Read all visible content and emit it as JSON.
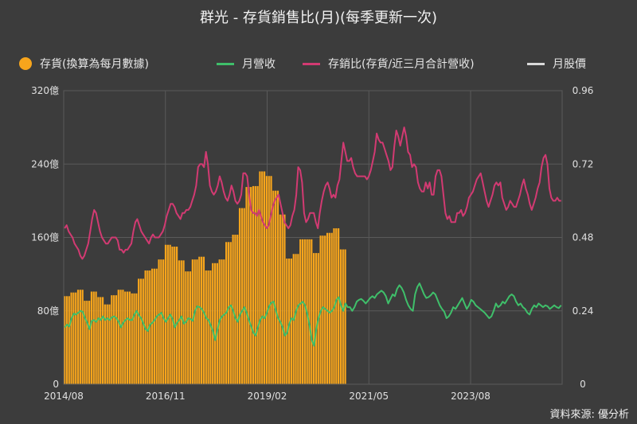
{
  "chart_data": {
    "type": "bar",
    "title": "群光 - 存貨銷售比(月)(每季更新一次)",
    "source": "資料來源: 優分析",
    "x_tick_labels": [
      "2014/08",
      "2016/11",
      "2019/02",
      "2021/05",
      "2023/08"
    ],
    "y_left_ticks": [
      "0",
      "80億",
      "160億",
      "240億",
      "320億"
    ],
    "y_right_ticks": [
      "0",
      "0.24",
      "0.48",
      "0.72",
      "0.96"
    ],
    "ylim_left": [
      0,
      320
    ],
    "ylim_right": [
      0,
      0.96
    ],
    "unit_left": "億",
    "legend_position": "top",
    "grid": true,
    "colors": {
      "inventory": "#f7a51c",
      "revenue": "#3fbf6a",
      "ratio": "#d23a72",
      "price": "#d9d9d9"
    },
    "series": [
      {
        "name": "存貨(換算為每月數據)",
        "type": "bar",
        "axis": "left",
        "quarterly_values": [
          96,
          100,
          103,
          91,
          101,
          95,
          87,
          97,
          103,
          101,
          99,
          115,
          124,
          126,
          136,
          152,
          150,
          135,
          123,
          136,
          139,
          124,
          132,
          136,
          155,
          163,
          192,
          215,
          216,
          232,
          227,
          211,
          185,
          137,
          142,
          158,
          158,
          143,
          162,
          165,
          170,
          147
        ]
      },
      {
        "name": "月營收",
        "type": "line",
        "axis": "left",
        "values": [
          62,
          65,
          63,
          72,
          77,
          76,
          78,
          80,
          79,
          72,
          67,
          60,
          69,
          70,
          68,
          72,
          70,
          74,
          70,
          72,
          70,
          73,
          74,
          72,
          68,
          62,
          67,
          70,
          72,
          70,
          70,
          76,
          80,
          75,
          72,
          66,
          60,
          58,
          65,
          67,
          70,
          74,
          76,
          78,
          72,
          68,
          72,
          76,
          71,
          62,
          67,
          70,
          74,
          66,
          68,
          72,
          71,
          69,
          80,
          85,
          84,
          82,
          78,
          72,
          70,
          64,
          58,
          48,
          60,
          70,
          74,
          76,
          78,
          84,
          86,
          80,
          72,
          68,
          76,
          80,
          84,
          78,
          70,
          63,
          56,
          53,
          62,
          70,
          74,
          72,
          78,
          85,
          89,
          90,
          80,
          72,
          68,
          62,
          53,
          56,
          66,
          72,
          70,
          80,
          86,
          88,
          90,
          86,
          76,
          64,
          48,
          42,
          60,
          72,
          80,
          84,
          82,
          80,
          78,
          80,
          84,
          92,
          95,
          86,
          80,
          88,
          84,
          84,
          80,
          84,
          90,
          92,
          93,
          91,
          88,
          91,
          94,
          96,
          94,
          98,
          100,
          102,
          100,
          96,
          88,
          93,
          98,
          96,
          104,
          108,
          105,
          100,
          92,
          86,
          82,
          80,
          98,
          106,
          110,
          104,
          98,
          94,
          95,
          97,
          100,
          98,
          92,
          86,
          82,
          79,
          72,
          74,
          78,
          84,
          82,
          86,
          90,
          94,
          88,
          82,
          86,
          92,
          90,
          86,
          84,
          82,
          80,
          78,
          75,
          72,
          74,
          80,
          88,
          84,
          86,
          90,
          88,
          92,
          96,
          98,
          96,
          90,
          86,
          88,
          84,
          82,
          78,
          76,
          82,
          86,
          84,
          88,
          86,
          84,
          86,
          85,
          82,
          84,
          86,
          84,
          83,
          86
        ]
      },
      {
        "name": "存銷比(存貨/近三月合計營收)",
        "type": "line",
        "axis": "right",
        "values": [
          0.51,
          0.52,
          0.5,
          0.49,
          0.48,
          0.46,
          0.45,
          0.44,
          0.42,
          0.41,
          0.42,
          0.44,
          0.46,
          0.5,
          0.54,
          0.57,
          0.56,
          0.53,
          0.5,
          0.48,
          0.47,
          0.46,
          0.46,
          0.47,
          0.48,
          0.48,
          0.48,
          0.47,
          0.44,
          0.44,
          0.43,
          0.44,
          0.44,
          0.45,
          0.46,
          0.5,
          0.53,
          0.54,
          0.52,
          0.5,
          0.49,
          0.48,
          0.47,
          0.46,
          0.48,
          0.49,
          0.48,
          0.48,
          0.48,
          0.49,
          0.5,
          0.52,
          0.55,
          0.57,
          0.59,
          0.59,
          0.58,
          0.56,
          0.55,
          0.54,
          0.56,
          0.56,
          0.57,
          0.57,
          0.58,
          0.6,
          0.62,
          0.65,
          0.71,
          0.72,
          0.72,
          0.71,
          0.76,
          0.72,
          0.65,
          0.63,
          0.62,
          0.63,
          0.65,
          0.68,
          0.66,
          0.63,
          0.61,
          0.6,
          0.62,
          0.65,
          0.63,
          0.6,
          0.59,
          0.6,
          0.62,
          0.69,
          0.69,
          0.68,
          0.62,
          0.57,
          0.56,
          0.56,
          0.55,
          0.57,
          0.55,
          0.53,
          0.52,
          0.51,
          0.52,
          0.55,
          0.58,
          0.6,
          0.61,
          0.62,
          0.59,
          0.56,
          0.53,
          0.52,
          0.51,
          0.52,
          0.55,
          0.57,
          0.62,
          0.71,
          0.7,
          0.66,
          0.56,
          0.53,
          0.54,
          0.56,
          0.56,
          0.56,
          0.53,
          0.51,
          0.56,
          0.6,
          0.63,
          0.65,
          0.66,
          0.64,
          0.61,
          0.62,
          0.61,
          0.65,
          0.67,
          0.73,
          0.79,
          0.76,
          0.73,
          0.73,
          0.74,
          0.71,
          0.69,
          0.68,
          0.68,
          0.68,
          0.68,
          0.68,
          0.67,
          0.68,
          0.7,
          0.73,
          0.76,
          0.82,
          0.8,
          0.79,
          0.79,
          0.77,
          0.75,
          0.73,
          0.7,
          0.71,
          0.78,
          0.83,
          0.81,
          0.78,
          0.81,
          0.84,
          0.81,
          0.76,
          0.75,
          0.71,
          0.72,
          0.71,
          0.66,
          0.64,
          0.63,
          0.63,
          0.66,
          0.64,
          0.66,
          0.62,
          0.62,
          0.68,
          0.7,
          0.7,
          0.68,
          0.62,
          0.56,
          0.54,
          0.55,
          0.53,
          0.53,
          0.53,
          0.56,
          0.56,
          0.57,
          0.55,
          0.56,
          0.58,
          0.61,
          0.62,
          0.63,
          0.65,
          0.67,
          0.68,
          0.69,
          0.66,
          0.63,
          0.6,
          0.58,
          0.6,
          0.62,
          0.65,
          0.66,
          0.65,
          0.66,
          0.61,
          0.59,
          0.57,
          0.58,
          0.6,
          0.59,
          0.58,
          0.58,
          0.6,
          0.62,
          0.65,
          0.67,
          0.64,
          0.62,
          0.59,
          0.57,
          0.59,
          0.61,
          0.64,
          0.66,
          0.71,
          0.74,
          0.75,
          0.72,
          0.64,
          0.61,
          0.6,
          0.6,
          0.61,
          0.6,
          0.6
        ]
      },
      {
        "name": "月股價",
        "type": "line",
        "axis": "right",
        "values": []
      }
    ]
  }
}
